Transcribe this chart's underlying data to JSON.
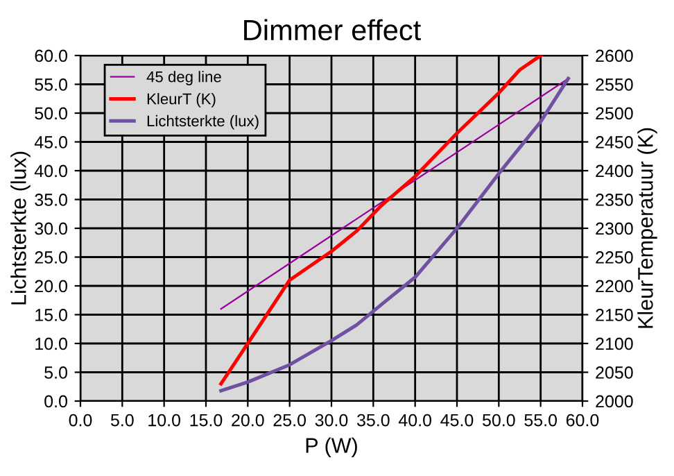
{
  "chart_data": {
    "type": "line",
    "title": "Dimmer effect",
    "xlabel": "P (W)",
    "ylabel": "Lichtsterkte (lux)",
    "y2label": "KleurTemperatuur (K)",
    "series": [
      {
        "name": "45 deg line",
        "color": "#990099",
        "x": [
          16.8,
          58.3
        ],
        "values": [
          16,
          56
        ]
      },
      {
        "name": "KleurT (K)",
        "color": "#ff0000",
        "axis": "y2",
        "x": [
          16.8,
          20,
          25,
          30,
          33,
          36,
          40,
          45,
          50,
          52.5,
          55
        ],
        "values": [
          2030,
          2100,
          2210,
          2260,
          2295,
          2340,
          2390,
          2465,
          2535,
          2575,
          2600
        ]
      },
      {
        "name": "Lichtsterkte (lux)",
        "color": "#7050a0",
        "x": [
          16.8,
          20,
          25,
          30,
          33,
          36,
          40,
          45,
          50,
          55,
          58.3
        ],
        "values": [
          1.8,
          3.3,
          6.3,
          10.5,
          13.2,
          16.8,
          21.5,
          30,
          39.5,
          48.5,
          56
        ]
      }
    ],
    "xlim": [
      0,
      60
    ],
    "ylim": [
      0,
      60
    ],
    "y2lim": [
      2000,
      2600
    ],
    "xticks": [
      {
        "value": 0,
        "label": "0.0"
      },
      {
        "value": 5,
        "label": "5.0"
      },
      {
        "value": 10,
        "label": "10.0"
      },
      {
        "value": 15,
        "label": "15.0"
      },
      {
        "value": 20,
        "label": "20.0"
      },
      {
        "value": 25,
        "label": "25.0"
      },
      {
        "value": 30,
        "label": "30.0"
      },
      {
        "value": 35,
        "label": "35.0"
      },
      {
        "value": 40,
        "label": "40.0"
      },
      {
        "value": 45,
        "label": "45.0"
      },
      {
        "value": 50,
        "label": "50.0"
      },
      {
        "value": 55,
        "label": "55.0"
      },
      {
        "value": 60,
        "label": "60.0"
      }
    ],
    "yticks": [
      {
        "value": 0,
        "label": "0.0"
      },
      {
        "value": 5,
        "label": "5.0"
      },
      {
        "value": 10,
        "label": "10.0"
      },
      {
        "value": 15,
        "label": "15.0"
      },
      {
        "value": 20,
        "label": "20.0"
      },
      {
        "value": 25,
        "label": "25.0"
      },
      {
        "value": 30,
        "label": "30.0"
      },
      {
        "value": 35,
        "label": "35.0"
      },
      {
        "value": 40,
        "label": "40.0"
      },
      {
        "value": 45,
        "label": "45.0"
      },
      {
        "value": 50,
        "label": "50.0"
      },
      {
        "value": 55,
        "label": "55.0"
      },
      {
        "value": 60,
        "label": "60.0"
      }
    ],
    "y2ticks": [
      2000,
      2050,
      2100,
      2150,
      2200,
      2250,
      2300,
      2350,
      2400,
      2450,
      2500,
      2550,
      2600
    ],
    "grid": true,
    "legend": "top left"
  }
}
